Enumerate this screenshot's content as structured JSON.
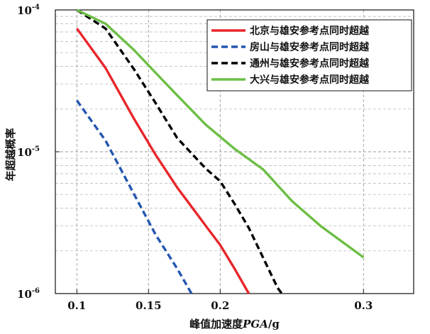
{
  "chart_data": {
    "type": "line",
    "title": "",
    "xlabel": "峰值加速度",
    "xlabel_italic": "PGA",
    "xlabel_unit": "/g",
    "ylabel": "年超越概率",
    "xlim": [
      0.085,
      0.335
    ],
    "ylim": [
      1e-06,
      0.0001
    ],
    "yscale": "log",
    "x_ticks": [
      0.1,
      0.15,
      0.2,
      0.3
    ],
    "x_tick_labels": [
      "0.1",
      "0.15",
      "0.2",
      "0.3"
    ],
    "y_ticks": [
      {
        "value": 1e-06,
        "base": "10",
        "exp": "-6"
      },
      {
        "value": 1e-05,
        "base": "10",
        "exp": "-5"
      },
      {
        "value": 0.0001,
        "base": "10",
        "exp": "-4"
      }
    ],
    "grid": true,
    "legend_position": "top-right",
    "series": [
      {
        "name": "北京与雄安参考点同时超越",
        "color": "#e8262b",
        "dash": "solid",
        "points": [
          [
            0.1,
            7.4e-05
          ],
          [
            0.12,
            3.9e-05
          ],
          [
            0.14,
            1.7e-05
          ],
          [
            0.155,
            9.5e-06
          ],
          [
            0.17,
            5.6e-06
          ],
          [
            0.18,
            4.1e-06
          ],
          [
            0.19,
            3e-06
          ],
          [
            0.2,
            2.2e-06
          ],
          [
            0.21,
            1.5e-06
          ],
          [
            0.22,
            1e-06
          ]
        ]
      },
      {
        "name": "房山与雄安参考点同时超越",
        "color": "#2456b0",
        "dash": "dashed",
        "points": [
          [
            0.1,
            2.3e-05
          ],
          [
            0.12,
            1.2e-05
          ],
          [
            0.14,
            5e-06
          ],
          [
            0.155,
            2.6e-06
          ],
          [
            0.17,
            1.5e-06
          ],
          [
            0.18,
            1e-06
          ]
        ]
      },
      {
        "name": "通州与雄安参考点同时超越",
        "color": "#000000",
        "dash": "dashed",
        "points": [
          [
            0.1,
            0.0001
          ],
          [
            0.12,
            7.4e-05
          ],
          [
            0.14,
            3.8e-05
          ],
          [
            0.155,
            2.2e-05
          ],
          [
            0.17,
            1.25e-05
          ],
          [
            0.19,
            7.6e-06
          ],
          [
            0.2,
            6.2e-06
          ],
          [
            0.21,
            4.3e-06
          ],
          [
            0.22,
            2.9e-06
          ],
          [
            0.24,
            1.1e-06
          ],
          [
            0.243,
            1e-06
          ]
        ]
      },
      {
        "name": "大兴与雄安参考点同时超越",
        "color": "#6cbe45",
        "dash": "solid",
        "points": [
          [
            0.1,
            0.0001
          ],
          [
            0.12,
            8e-05
          ],
          [
            0.14,
            5.2e-05
          ],
          [
            0.155,
            3.6e-05
          ],
          [
            0.17,
            2.5e-05
          ],
          [
            0.19,
            1.55e-05
          ],
          [
            0.21,
            1.05e-05
          ],
          [
            0.23,
            7.5e-06
          ],
          [
            0.25,
            4.5e-06
          ],
          [
            0.27,
            3e-06
          ],
          [
            0.3,
            1.8e-06
          ]
        ]
      }
    ]
  }
}
